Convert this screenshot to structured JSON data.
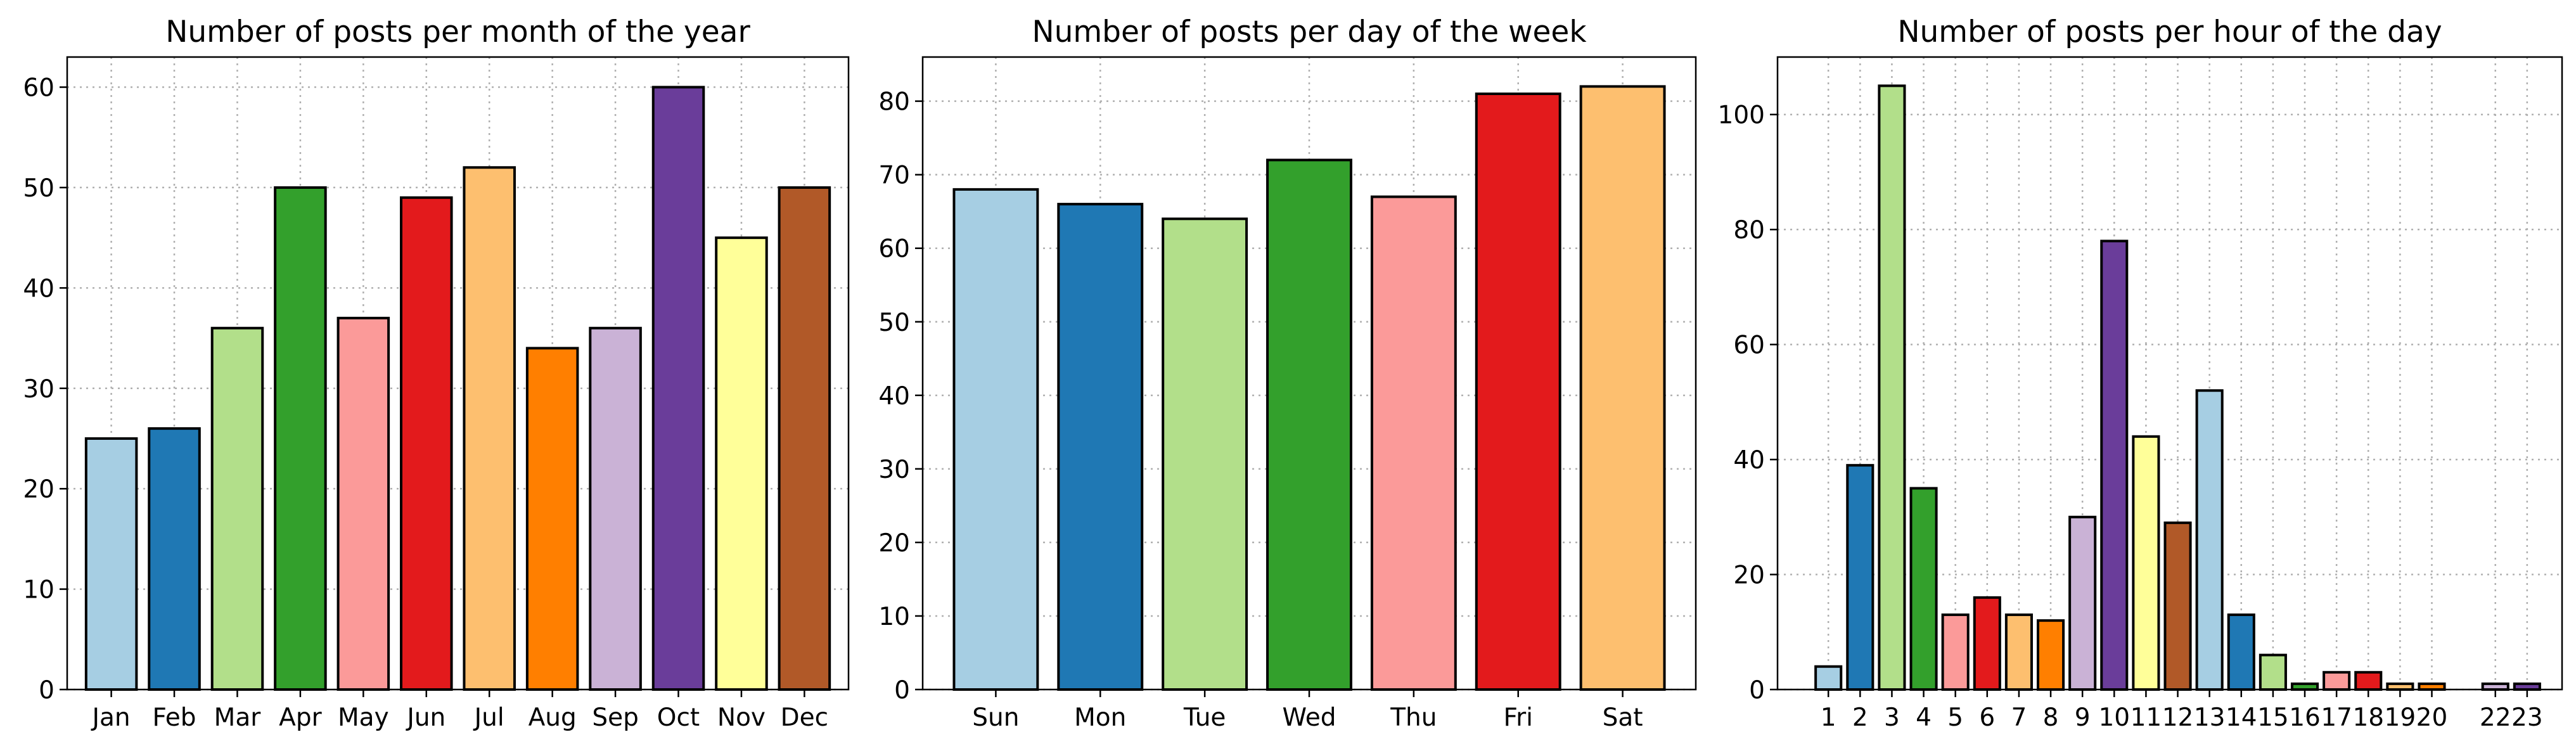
{
  "palette": [
    "#a6cee3",
    "#1f78b4",
    "#b2df8a",
    "#33a02c",
    "#fb9a99",
    "#e31a1c",
    "#fdbf6f",
    "#ff7f00",
    "#cab2d6",
    "#6a3d9a",
    "#ffff99",
    "#b15928"
  ],
  "chart_data": [
    {
      "type": "bar",
      "title": "Number of posts per month of the year",
      "categories": [
        "Jan",
        "Feb",
        "Mar",
        "Apr",
        "May",
        "Jun",
        "Jul",
        "Aug",
        "Sep",
        "Oct",
        "Nov",
        "Dec"
      ],
      "x": [
        1,
        2,
        3,
        4,
        5,
        6,
        7,
        8,
        9,
        10,
        11,
        12
      ],
      "values": [
        25,
        26,
        36,
        50,
        37,
        49,
        52,
        34,
        36,
        60,
        45,
        50
      ],
      "ylim": [
        0,
        63
      ],
      "xlim": [
        0.3,
        12.7
      ],
      "yticks": [
        0,
        10,
        20,
        30,
        40,
        50,
        60
      ],
      "grid": true
    },
    {
      "type": "bar",
      "title": "Number of posts per day of the week",
      "categories": [
        "Sun",
        "Mon",
        "Tue",
        "Wed",
        "Thu",
        "Fri",
        "Sat"
      ],
      "x": [
        0,
        1,
        2,
        3,
        4,
        5,
        6
      ],
      "values": [
        68,
        66,
        64,
        72,
        67,
        81,
        82
      ],
      "ylim": [
        0,
        86
      ],
      "xlim": [
        -0.7,
        6.7
      ],
      "yticks": [
        0,
        10,
        20,
        30,
        40,
        50,
        60,
        70,
        80
      ],
      "grid": true
    },
    {
      "type": "bar",
      "title": "Number of posts per hour of the day",
      "categories": [
        "1",
        "2",
        "3",
        "4",
        "5",
        "6",
        "7",
        "8",
        "9",
        "10",
        "11",
        "12",
        "13",
        "14",
        "15",
        "16",
        "17",
        "18",
        "19",
        "20",
        "22",
        "23"
      ],
      "x": [
        1,
        2,
        3,
        4,
        5,
        6,
        7,
        8,
        9,
        10,
        11,
        12,
        13,
        14,
        15,
        16,
        17,
        18,
        19,
        20,
        22,
        23
      ],
      "values": [
        4,
        39,
        105,
        35,
        13,
        16,
        13,
        12,
        30,
        78,
        44,
        29,
        52,
        13,
        6,
        1,
        3,
        3,
        1,
        1,
        1,
        1
      ],
      "ylim": [
        0,
        110
      ],
      "xlim": [
        -0.6,
        24.1
      ],
      "yticks": [
        0,
        20,
        40,
        60,
        80,
        100
      ],
      "grid": true
    }
  ]
}
